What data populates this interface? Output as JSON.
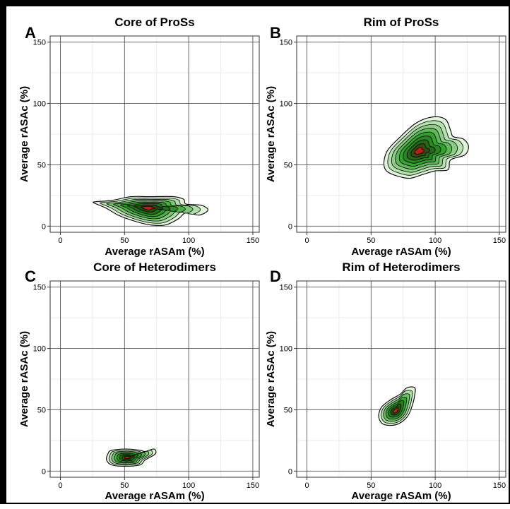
{
  "chart_data": [
    {
      "type": "contour",
      "letter": "A",
      "title": "Core of ProSs",
      "xlabel": "Average rASAm (%)",
      "ylabel": "Average rASAc (%)",
      "xlim": [
        -8,
        155
      ],
      "ylim": [
        -5,
        155
      ],
      "xticks": [
        "0",
        "50",
        "100",
        "150"
      ],
      "yticks": [
        "0",
        "50",
        "100",
        "150"
      ],
      "grid": true,
      "density": {
        "peak": [
          68,
          15
        ],
        "contour_levels": 8,
        "outer_outline": [
          [
            28,
            20
          ],
          [
            40,
            21
          ],
          [
            55,
            24
          ],
          [
            70,
            24
          ],
          [
            88,
            24
          ],
          [
            96,
            22
          ],
          [
            98,
            18
          ],
          [
            110,
            17
          ],
          [
            115,
            13
          ],
          [
            108,
            9
          ],
          [
            98,
            11
          ],
          [
            92,
            6
          ],
          [
            82,
            1
          ],
          [
            70,
            1
          ],
          [
            58,
            4
          ],
          [
            45,
            9
          ],
          [
            35,
            15
          ],
          [
            26,
            19
          ]
        ]
      }
    },
    {
      "type": "contour",
      "letter": "B",
      "title": "Rim of ProSs",
      "xlabel": "Average rASAm (%)",
      "ylabel": "Average rASAc (%)",
      "xlim": [
        -8,
        155
      ],
      "ylim": [
        -5,
        155
      ],
      "xticks": [
        "0",
        "50",
        "100",
        "150"
      ],
      "yticks": [
        "0",
        "50",
        "100",
        "150"
      ],
      "grid": true,
      "density": {
        "peak": [
          87,
          61
        ],
        "contour_levels": 9,
        "outer_outline": [
          [
            60,
            52
          ],
          [
            63,
            62
          ],
          [
            72,
            72
          ],
          [
            85,
            84
          ],
          [
            98,
            89
          ],
          [
            108,
            87
          ],
          [
            112,
            78
          ],
          [
            114,
            73
          ],
          [
            122,
            71
          ],
          [
            126,
            65
          ],
          [
            123,
            58
          ],
          [
            112,
            54
          ],
          [
            110,
            46
          ],
          [
            100,
            45
          ],
          [
            90,
            42
          ],
          [
            80,
            39
          ],
          [
            70,
            41
          ],
          [
            62,
            45
          ]
        ]
      }
    },
    {
      "type": "contour",
      "letter": "C",
      "title": "Core of Heterodimers",
      "xlabel": "Average rASAm (%)",
      "ylabel": "Average rASAc (%)",
      "xlim": [
        -8,
        155
      ],
      "ylim": [
        -5,
        155
      ],
      "xticks": [
        "0",
        "50",
        "100",
        "150"
      ],
      "yticks": [
        "0",
        "50",
        "100",
        "150"
      ],
      "grid": true,
      "density": {
        "peak": [
          52,
          11
        ],
        "contour_levels": 8,
        "outer_outline": [
          [
            37,
            14
          ],
          [
            40,
            17
          ],
          [
            52,
            18
          ],
          [
            62,
            17
          ],
          [
            66,
            16
          ],
          [
            73,
            18
          ],
          [
            74,
            14
          ],
          [
            66,
            9
          ],
          [
            62,
            5
          ],
          [
            50,
            4
          ],
          [
            40,
            5
          ],
          [
            36,
            9
          ]
        ]
      }
    },
    {
      "type": "contour",
      "letter": "D",
      "title": "Rim of Heterodimers",
      "xlabel": "Average rASAm (%)",
      "ylabel": "Average rASAc (%)",
      "xlim": [
        -8,
        155
      ],
      "ylim": [
        -5,
        155
      ],
      "xticks": [
        "0",
        "50",
        "100",
        "150"
      ],
      "yticks": [
        "0",
        "50",
        "100",
        "150"
      ],
      "grid": true,
      "density": {
        "peak": [
          69,
          49
        ],
        "contour_levels": 7,
        "outer_outline": [
          [
            56,
            44
          ],
          [
            58,
            52
          ],
          [
            65,
            58
          ],
          [
            73,
            63
          ],
          [
            78,
            68
          ],
          [
            84,
            68
          ],
          [
            84,
            62
          ],
          [
            82,
            53
          ],
          [
            78,
            44
          ],
          [
            70,
            38
          ],
          [
            60,
            38
          ]
        ]
      }
    }
  ],
  "colors": {
    "outer": "#e2f4dc",
    "mid": "#35a32f",
    "dark": "#1d5010",
    "core": "#b8201a",
    "line": "#000000",
    "grid_major": "#555555",
    "grid_minor": "#ececec"
  }
}
